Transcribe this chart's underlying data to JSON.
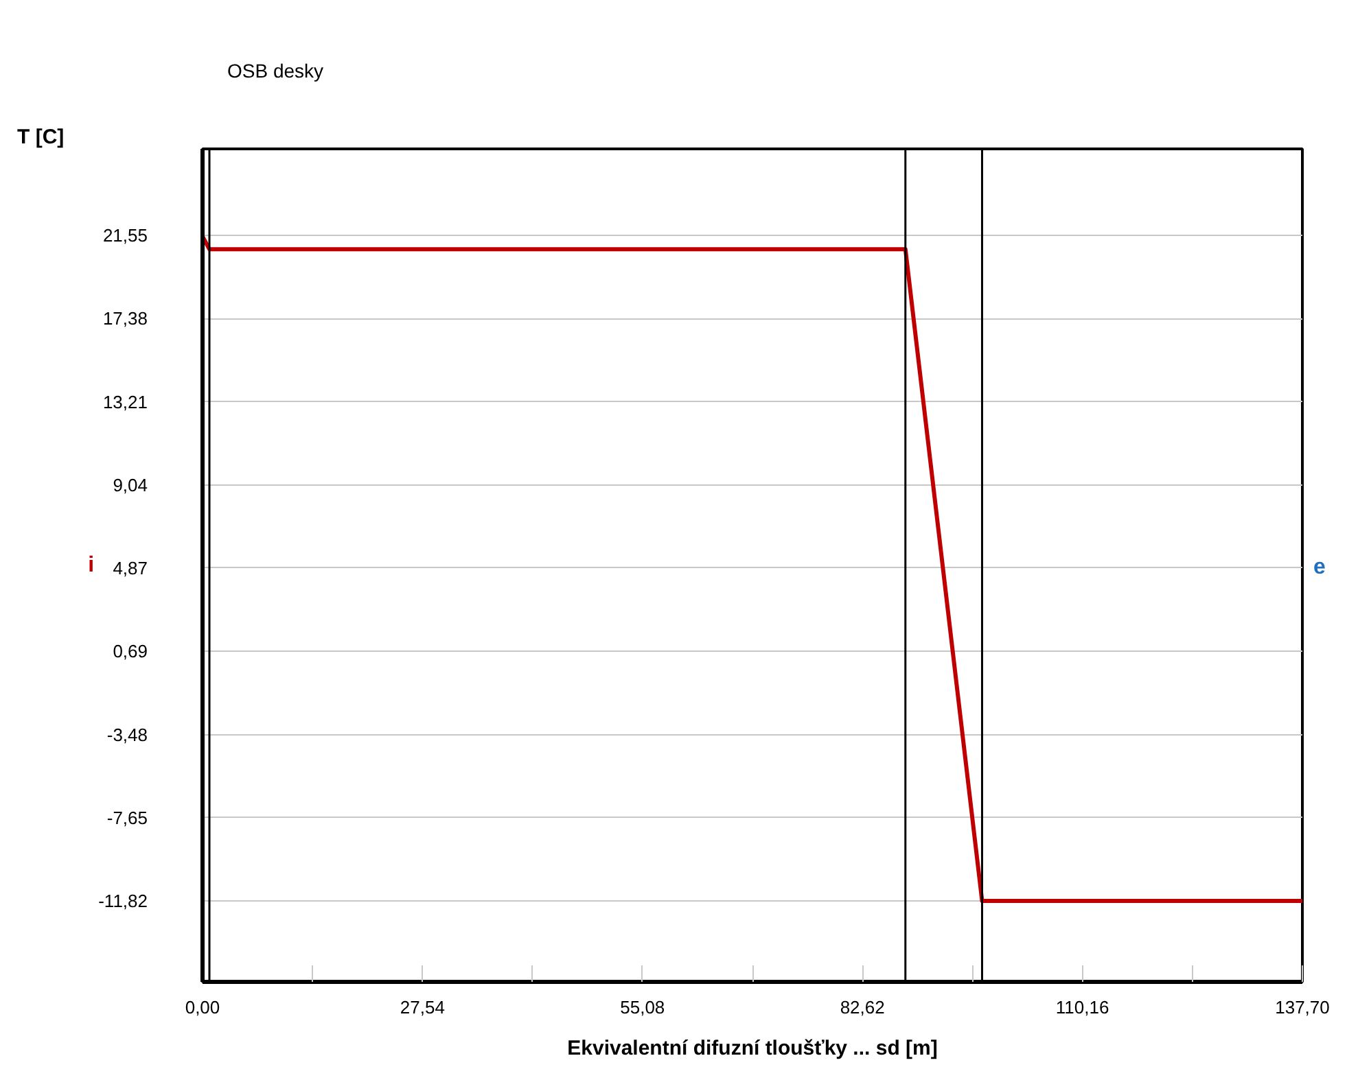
{
  "chart_data": {
    "type": "line",
    "xlabel": "Ekvivalentní difuzní tloušťky ... sd [m]",
    "ylabel": "T [C]",
    "annotations": [
      "OSB desky",
      "i",
      "e"
    ],
    "series": [
      {
        "color": "#c00000",
        "x": [
          0,
          0.86,
          88.0,
          97.6,
          137.7
        ],
        "values": [
          21.5,
          20.86,
          20.86,
          -11.82,
          -11.82
        ]
      }
    ],
    "xlim": [
      0,
      137.7
    ],
    "ylim": [
      -15.88,
      25.89
    ],
    "xticks": [
      {
        "value": 0,
        "label": "0,00"
      },
      {
        "value": 13.77,
        "label": null
      },
      {
        "value": 27.54,
        "label": "27,54"
      },
      {
        "value": 41.31,
        "label": null
      },
      {
        "value": 55.08,
        "label": "55,08"
      },
      {
        "value": 68.85,
        "label": null
      },
      {
        "value": 82.62,
        "label": "82,62"
      },
      {
        "value": 96.39,
        "label": null
      },
      {
        "value": 110.16,
        "label": "110,16"
      },
      {
        "value": 123.93,
        "label": null
      },
      {
        "value": 137.7,
        "label": "137,70"
      }
    ],
    "yticks": [
      {
        "value": -11.82,
        "label": "-11,82"
      },
      {
        "value": -7.65,
        "label": "-7,65"
      },
      {
        "value": -3.48,
        "label": "-3,48"
      },
      {
        "value": 0.69,
        "label": "0,69"
      },
      {
        "value": 4.87,
        "label": "4,87"
      },
      {
        "value": 9.04,
        "label": "9,04"
      },
      {
        "value": 13.21,
        "label": "13,21"
      },
      {
        "value": 17.38,
        "label": "17,38"
      },
      {
        "value": 21.55,
        "label": "21,55"
      }
    ],
    "ref_lines": [
      {
        "axis": "x",
        "value": 0.86,
        "color": "#000000"
      },
      {
        "axis": "x",
        "value": 88.0,
        "color": "#000000"
      },
      {
        "axis": "x",
        "value": 97.6,
        "color": "#000000"
      }
    ],
    "grid": "y",
    "marker": "none",
    "line_style": "solid"
  }
}
